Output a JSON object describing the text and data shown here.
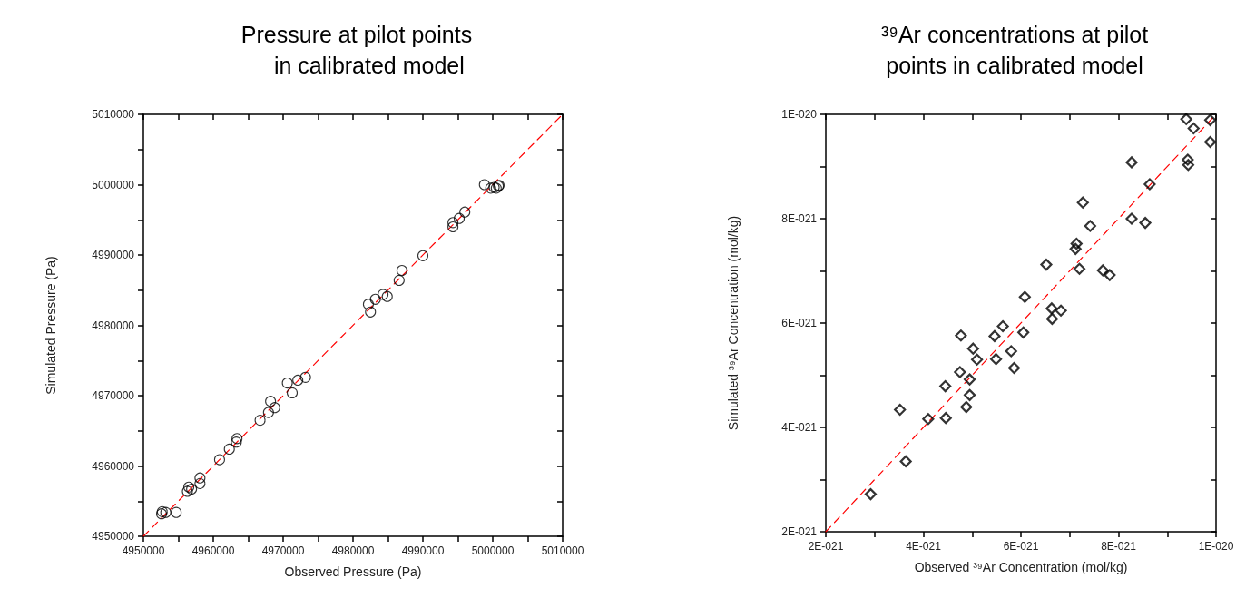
{
  "chart_data": [
    {
      "type": "scatter",
      "title": "Pressure at pilot points\n    in calibrated model",
      "xlabel": "Observed Pressure (Pa)",
      "ylabel": "Simulated Pressure (Pa)",
      "grid": false,
      "xlim": [
        4950000,
        5010000
      ],
      "ylim": [
        4950000,
        5010000
      ],
      "xticks": [
        4950000,
        {
          "value": 4955000,
          "label": null
        },
        4960000,
        {
          "value": 4965000,
          "label": null
        },
        4970000,
        {
          "value": 4975000,
          "label": null
        },
        4980000,
        {
          "value": 4985000,
          "label": null
        },
        4990000,
        {
          "value": 4995000,
          "label": null
        },
        5000000,
        {
          "value": 5005000,
          "label": null
        },
        5010000
      ],
      "yticks": [
        4950000,
        {
          "value": 4955000,
          "label": null
        },
        4960000,
        {
          "value": 4965000,
          "label": null
        },
        4970000,
        {
          "value": 4975000,
          "label": null
        },
        4980000,
        {
          "value": 4985000,
          "label": null
        },
        4990000,
        {
          "value": 4995000,
          "label": null
        },
        5000000,
        {
          "value": 5005000,
          "label": null
        },
        5010000
      ],
      "series": [
        {
          "color": "#000000",
          "marker": "circle",
          "x": [
            4952600,
            4952700,
            4953200,
            4954700,
            4956300,
            4956500,
            4956900,
            4958100,
            4958100,
            4960900,
            4962300,
            4963300,
            4963400,
            4966700,
            4967900,
            4968200,
            4968800,
            4970600,
            4971300,
            4972100,
            4973200,
            4982200,
            4982500,
            4983200,
            4984300,
            4984900,
            4986600,
            4987000,
            4990000,
            4994300,
            4994300,
            4995200,
            4996000,
            4998800,
            4999700,
            5000200,
            5000500,
            5000800,
            5000900
          ],
          "values": [
            4953200,
            4953500,
            4953400,
            4953400,
            4956400,
            4957000,
            4956700,
            4957500,
            4958300,
            4960900,
            4962400,
            4963400,
            4963900,
            4966500,
            4967600,
            4969200,
            4968300,
            4971800,
            4970400,
            4972200,
            4972600,
            4983000,
            4981900,
            4983700,
            4984400,
            4984100,
            4986400,
            4987800,
            4989900,
            4994000,
            4994600,
            4995200,
            4996100,
            5000000,
            4999500,
            4999600,
            4999500,
            4999800,
            4999900
          ]
        },
        {
          "type": "line",
          "color": "#ff0000",
          "line_style": "dashed",
          "x": [
            4950000,
            5010000
          ],
          "values": [
            4950000,
            5010000
          ]
        }
      ]
    },
    {
      "type": "scatter",
      "title": "³⁹Ar concentrations at pilot\npoints in calibrated model",
      "xlabel": "Observed ³⁹Ar Concentration (mol/kg)",
      "ylabel": "Simulated ³⁹Ar Concentration (mol/kg)",
      "grid": false,
      "xlim": [
        2e-21,
        1e-20
      ],
      "ylim": [
        2e-21,
        1e-20
      ],
      "xticks": [
        {
          "value": 2e-21,
          "label": "2E-021"
        },
        {
          "value": 3e-21,
          "label": null
        },
        {
          "value": 4e-21,
          "label": "4E-021"
        },
        {
          "value": 5e-21,
          "label": null
        },
        {
          "value": 6e-21,
          "label": "6E-021"
        },
        {
          "value": 7e-21,
          "label": null
        },
        {
          "value": 8e-21,
          "label": "8E-021"
        },
        {
          "value": 9e-21,
          "label": null
        },
        {
          "value": 1e-20,
          "label": "1E-020"
        }
      ],
      "yticks": [
        {
          "value": 2e-21,
          "label": "2E-021"
        },
        {
          "value": 3e-21,
          "label": null
        },
        {
          "value": 4e-21,
          "label": "4E-021"
        },
        {
          "value": 5e-21,
          "label": null
        },
        {
          "value": 6e-21,
          "label": "6E-021"
        },
        {
          "value": 7e-21,
          "label": null
        },
        {
          "value": 8e-21,
          "label": "8E-021"
        },
        {
          "value": 9e-21,
          "label": null
        },
        {
          "value": 1e-20,
          "label": "1E-020"
        }
      ],
      "series": [
        {
          "color": "#000000",
          "marker": "diamond",
          "x": [
            2.92e-21,
            3.52e-21,
            3.64e-21,
            4.1e-21,
            4.46e-21,
            4.45e-21,
            4.75e-21,
            4.77e-21,
            4.88e-21,
            4.95e-21,
            4.95e-21,
            5.02e-21,
            5.1e-21,
            5.46e-21,
            5.49e-21,
            5.63e-21,
            5.8e-21,
            5.86e-21,
            6.05e-21,
            6.08e-21,
            6.52e-21,
            6.63e-21,
            6.64e-21,
            6.82e-21,
            7.12e-21,
            7.14e-21,
            7.2e-21,
            7.27e-21,
            7.42e-21,
            7.68e-21,
            7.82e-21,
            8.27e-21,
            8.27e-21,
            8.55e-21,
            8.64e-21,
            9.39e-21,
            9.54e-21,
            9.42e-21,
            9.43e-21,
            9.88e-21,
            9.88e-21
          ],
          "values": [
            2.72e-21,
            4.34e-21,
            3.35e-21,
            4.16e-21,
            4.18e-21,
            4.79e-21,
            5.06e-21,
            5.76e-21,
            4.39e-21,
            4.92e-21,
            4.62e-21,
            5.51e-21,
            5.3e-21,
            5.75e-21,
            5.31e-21,
            5.94e-21,
            5.46e-21,
            5.14e-21,
            5.82e-21,
            6.5e-21,
            7.12e-21,
            6.28e-21,
            6.08e-21,
            6.24e-21,
            7.42e-21,
            7.52e-21,
            7.04e-21,
            8.31e-21,
            7.86e-21,
            7.01e-21,
            6.92e-21,
            9.08e-21,
            8e-21,
            7.92e-21,
            8.66e-21,
            9.91e-21,
            9.73e-21,
            9.13e-21,
            9.03e-21,
            9.89e-21,
            9.47e-21
          ]
        },
        {
          "type": "line",
          "color": "#ff0000",
          "line_style": "dashed",
          "x": [
            2e-21,
            1e-20
          ],
          "values": [
            2e-21,
            1e-20
          ]
        }
      ]
    }
  ]
}
